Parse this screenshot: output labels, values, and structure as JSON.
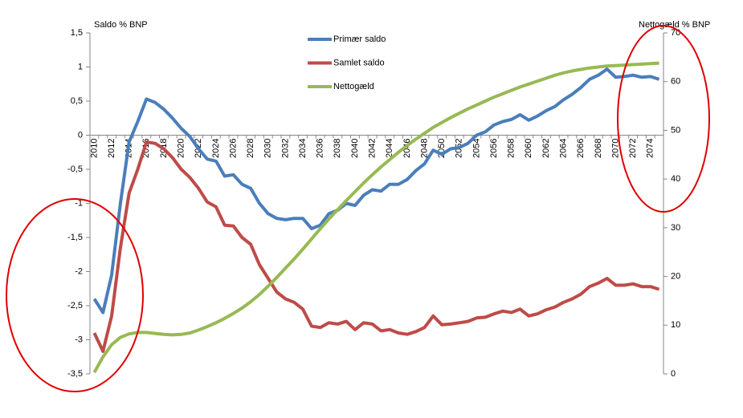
{
  "chart_data": {
    "type": "line",
    "y_label": "Saldo % BNP",
    "y2_label": "Nettogæld % BNP",
    "categories": [
      2010,
      null,
      2012,
      null,
      2014,
      null,
      2016,
      null,
      2018,
      null,
      2020,
      null,
      2022,
      null,
      2024,
      null,
      2026,
      null,
      2028,
      null,
      2030,
      null,
      2032,
      null,
      2034,
      null,
      2036,
      null,
      2038,
      null,
      2040,
      null,
      2042,
      null,
      2044,
      null,
      2046,
      null,
      2048,
      null,
      2050,
      null,
      2052,
      null,
      2054,
      null,
      2056,
      null,
      2058,
      null,
      2060,
      null,
      2062,
      null,
      2064,
      null,
      2066,
      null,
      2068,
      null,
      2070,
      null,
      2072,
      null,
      2074,
      null
    ],
    "series": [
      {
        "name": "Primær saldo",
        "color": "#4a7ebb",
        "values": [
          -2.4,
          -2.6,
          -2.05,
          -1.0,
          -0.1,
          0.2,
          0.53,
          0.48,
          0.38,
          0.25,
          0.1,
          -0.02,
          -0.2,
          -0.35,
          -0.38,
          -0.6,
          -0.58,
          -0.72,
          -0.78,
          -1.0,
          -1.15,
          -1.22,
          -1.24,
          -1.22,
          -1.22,
          -1.37,
          -1.32,
          -1.15,
          -1.1,
          -1.0,
          -1.03,
          -0.88,
          -0.8,
          -0.82,
          -0.72,
          -0.72,
          -0.65,
          -0.52,
          -0.42,
          -0.22,
          -0.28,
          -0.2,
          -0.18,
          -0.12,
          0.0,
          0.05,
          0.15,
          0.2,
          0.23,
          0.3,
          0.22,
          0.28,
          0.36,
          0.42,
          0.52,
          0.6,
          0.7,
          0.82,
          0.88,
          0.97,
          0.85,
          0.86,
          0.88,
          0.85,
          0.86,
          0.82
        ]
      },
      {
        "name": "Samlet saldo",
        "color": "#be4b48",
        "values": [
          -2.9,
          -3.17,
          -2.65,
          -1.65,
          -0.85,
          -0.5,
          -0.1,
          -0.12,
          -0.2,
          -0.33,
          -0.5,
          -0.62,
          -0.78,
          -0.98,
          -1.05,
          -1.32,
          -1.33,
          -1.5,
          -1.6,
          -1.9,
          -2.1,
          -2.3,
          -2.4,
          -2.45,
          -2.55,
          -2.8,
          -2.82,
          -2.75,
          -2.77,
          -2.73,
          -2.85,
          -2.75,
          -2.77,
          -2.87,
          -2.85,
          -2.9,
          -2.92,
          -2.88,
          -2.82,
          -2.65,
          -2.78,
          -2.77,
          -2.75,
          -2.73,
          -2.68,
          -2.67,
          -2.62,
          -2.58,
          -2.6,
          -2.55,
          -2.65,
          -2.62,
          -2.56,
          -2.52,
          -2.45,
          -2.4,
          -2.33,
          -2.22,
          -2.17,
          -2.1,
          -2.2,
          -2.2,
          -2.18,
          -2.22,
          -2.22,
          -2.26
        ]
      },
      {
        "name": "Nettogæld",
        "color": "#98b954",
        "axis": "y2",
        "values": [
          0.3,
          3.5,
          6,
          7.5,
          8.2,
          8.5,
          8.5,
          8.3,
          8.1,
          8.0,
          8.1,
          8.4,
          9,
          9.7,
          10.5,
          11.4,
          12.4,
          13.5,
          14.8,
          16.3,
          18,
          19.8,
          21.7,
          23.6,
          25.6,
          27.7,
          29.8,
          31.8,
          33.7,
          35.6,
          37.4,
          39.2,
          40.9,
          42.5,
          44,
          45.5,
          46.9,
          48.2,
          49.4,
          50.6,
          51.6,
          52.6,
          53.5,
          54.4,
          55.2,
          56,
          56.8,
          57.5,
          58.2,
          58.9,
          59.5,
          60.1,
          60.7,
          61.3,
          61.8,
          62.2,
          62.5,
          62.8,
          63,
          63.2,
          63.3,
          63.4,
          63.5,
          63.6,
          63.7,
          63.8
        ]
      }
    ],
    "ylim": [
      -3.5,
      1.5
    ],
    "yticks": [
      {
        "value": 1.5,
        "label": "1,5"
      },
      1,
      {
        "value": 0.5,
        "label": "0,5"
      },
      0,
      {
        "value": -0.5,
        "label": "-0,5"
      },
      -1,
      {
        "value": -1.5,
        "label": "-1,5"
      },
      -2,
      {
        "value": -2.5,
        "label": "-2,5"
      },
      -3,
      {
        "value": -3.5,
        "label": "-3,5"
      }
    ],
    "y2lim": [
      0,
      70
    ],
    "y2ticks": [
      0,
      10,
      20,
      30,
      40,
      50,
      60,
      70
    ],
    "legend": "top-center"
  }
}
